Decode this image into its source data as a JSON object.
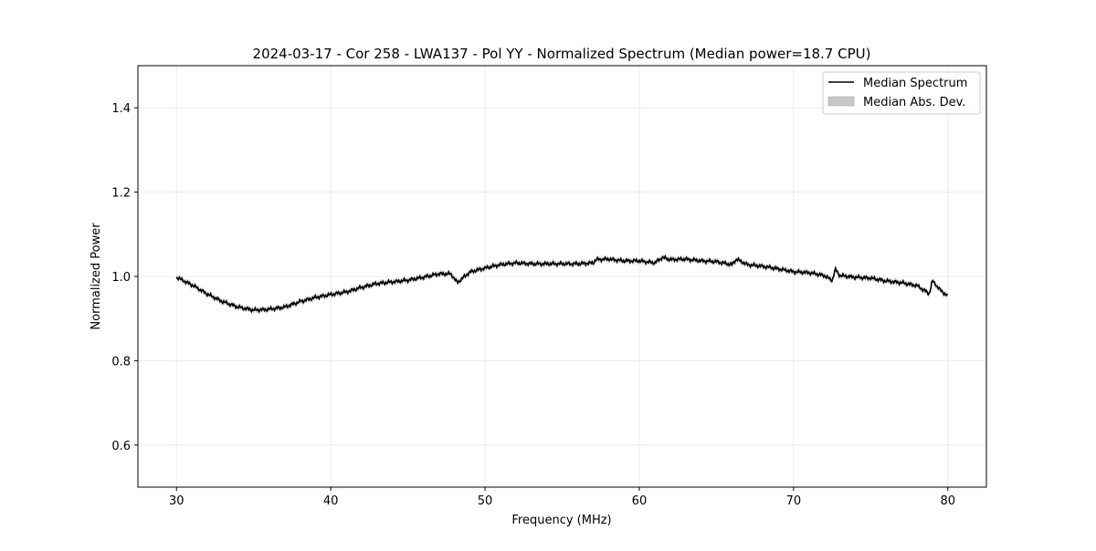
{
  "chart_data": {
    "type": "line",
    "title": "2024-03-17 - Cor 258 - LWA137 - Pol YY - Normalized Spectrum (Median power=18.7 CPU)",
    "xlabel": "Frequency (MHz)",
    "ylabel": "Normalized Power",
    "xlim": [
      27.5,
      82.5
    ],
    "ylim": [
      0.5,
      1.5
    ],
    "xticks": [
      30,
      40,
      50,
      60,
      70,
      80
    ],
    "xtick_labels": [
      "30",
      "40",
      "50",
      "60",
      "70",
      "80"
    ],
    "yticks": [
      0.6,
      0.8,
      1.0,
      1.2,
      1.4
    ],
    "ytick_labels": [
      "0.6",
      "0.8",
      "1.0",
      "1.2",
      "1.4"
    ],
    "grid": true,
    "legend_placement": "top-right",
    "legend": [
      "Median Spectrum",
      "Median Abs. Dev."
    ],
    "colors": {
      "line": "#000000",
      "band": "#c8c8c8",
      "grid": "#e6e6e6"
    },
    "series": [
      {
        "name": "Median Spectrum",
        "x": [
          30,
          31,
          32,
          33,
          34,
          35,
          36,
          37,
          38,
          39,
          40,
          41,
          42,
          43,
          44,
          45,
          46,
          47,
          47.8,
          48.2,
          49,
          50,
          51,
          52,
          53,
          54,
          55,
          56,
          57,
          57.2,
          58,
          59,
          60,
          61,
          61.5,
          62,
          63,
          64,
          65,
          66,
          66.3,
          67,
          68,
          69,
          70,
          71,
          72,
          72.5,
          72.7,
          73,
          74,
          75,
          76,
          77,
          78,
          78.8,
          79,
          79.5,
          80
        ],
        "y": [
          0.998,
          0.98,
          0.958,
          0.94,
          0.927,
          0.92,
          0.922,
          0.927,
          0.94,
          0.95,
          0.957,
          0.963,
          0.974,
          0.983,
          0.987,
          0.991,
          0.998,
          1.006,
          1.006,
          0.985,
          1.01,
          1.02,
          1.028,
          1.032,
          1.03,
          1.03,
          1.03,
          1.03,
          1.032,
          1.04,
          1.041,
          1.037,
          1.037,
          1.032,
          1.045,
          1.04,
          1.041,
          1.037,
          1.035,
          1.028,
          1.041,
          1.028,
          1.024,
          1.018,
          1.011,
          1.009,
          1.002,
          0.99,
          1.017,
          1.002,
          0.998,
          0.996,
          0.989,
          0.985,
          0.978,
          0.959,
          0.99,
          0.968,
          0.953
        ]
      },
      {
        "name": "Median Abs. Dev.",
        "half_width": 0.006
      }
    ]
  }
}
